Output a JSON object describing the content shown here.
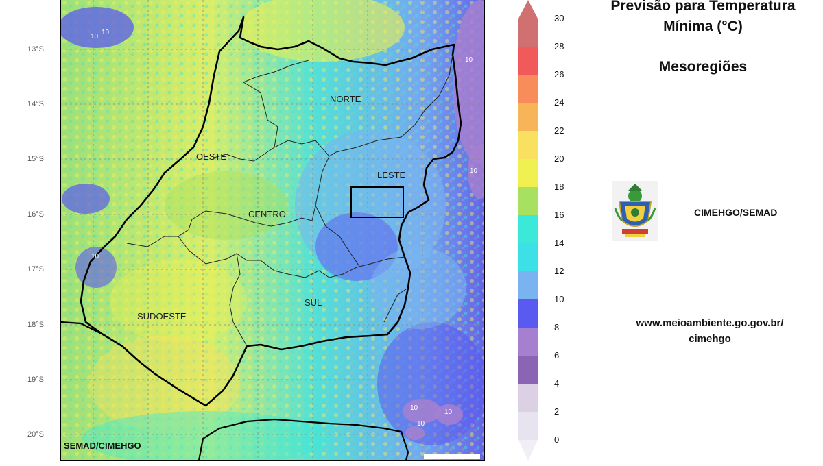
{
  "title": {
    "line1": "Previsão para Temperatura",
    "line2": "Mínima (°C)"
  },
  "subtitle": "Mesoregiões",
  "map": {
    "latitude_labels": [
      "13°S",
      "14°S",
      "15°S",
      "16°S",
      "17°S",
      "18°S",
      "19°S",
      "20°S"
    ],
    "regions": [
      "NORTE",
      "OESTE",
      "LESTE",
      "CENTRO",
      "SUL",
      "SUDOESTE"
    ],
    "contour_labels": [
      "10",
      "10",
      "10",
      "10",
      "10",
      "10",
      "10",
      "10"
    ],
    "credit": "SEMAD/CIMEHGO"
  },
  "legend": {
    "ticks": [
      "30",
      "28",
      "26",
      "24",
      "22",
      "20",
      "18",
      "16",
      "14",
      "12",
      "10",
      "8",
      "6",
      "4",
      "2",
      "0"
    ],
    "colors": [
      "#f1eef6",
      "#e7e3ef",
      "#dcd0e4",
      "#8c64b4",
      "#a680d0",
      "#5a5af0",
      "#7ab4f0",
      "#3ee0e8",
      "#3ce8d8",
      "#a8e060",
      "#f0f050",
      "#f8e060",
      "#f8b458",
      "#f88c5a",
      "#f05a5a",
      "#d07070"
    ]
  },
  "organization": "CIMEHGO/SEMAD",
  "website": {
    "line1": "www.meioambiente.go.gov.br/",
    "line2": "cimehgo"
  }
}
